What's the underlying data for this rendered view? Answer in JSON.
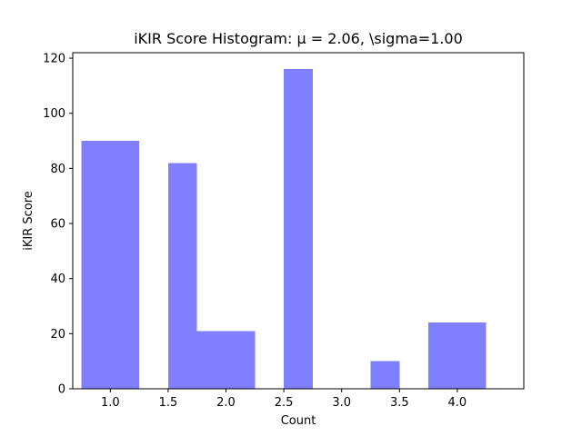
{
  "chart_data": {
    "type": "bar",
    "title": "iKIR Score Histogram: μ = 2.06, \\sigma=1.00",
    "xlabel": "Count",
    "ylabel": "iKIR Score",
    "xlim": [
      0.675,
      4.575
    ],
    "ylim": [
      0,
      122
    ],
    "xticks": [
      1.0,
      1.5,
      2.0,
      2.5,
      3.0,
      3.5,
      4.0
    ],
    "xtick_labels": [
      "1.0",
      "1.5",
      "2.0",
      "2.5",
      "3.0",
      "3.5",
      "4.0"
    ],
    "yticks": [
      0,
      20,
      40,
      60,
      80,
      100,
      120
    ],
    "ytick_labels": [
      "0",
      "20",
      "40",
      "60",
      "80",
      "100",
      "120"
    ],
    "bin_edges": [
      0.75,
      1.0,
      1.25,
      1.5,
      1.75,
      2.0,
      2.25,
      2.5,
      2.75,
      3.0,
      3.25,
      3.5,
      3.75,
      4.0,
      4.25
    ],
    "bins": [
      {
        "x0": 0.75,
        "x1": 1.0,
        "value": 90
      },
      {
        "x0": 1.0,
        "x1": 1.25,
        "value": 90
      },
      {
        "x0": 1.25,
        "x1": 1.5,
        "value": 0
      },
      {
        "x0": 1.5,
        "x1": 1.75,
        "value": 82
      },
      {
        "x0": 1.75,
        "x1": 2.0,
        "value": 21
      },
      {
        "x0": 2.0,
        "x1": 2.25,
        "value": 21
      },
      {
        "x0": 2.25,
        "x1": 2.5,
        "value": 0
      },
      {
        "x0": 2.5,
        "x1": 2.75,
        "value": 116
      },
      {
        "x0": 2.75,
        "x1": 3.0,
        "value": 0
      },
      {
        "x0": 3.0,
        "x1": 3.25,
        "value": 0
      },
      {
        "x0": 3.25,
        "x1": 3.5,
        "value": 10
      },
      {
        "x0": 3.5,
        "x1": 3.75,
        "value": 0
      },
      {
        "x0": 3.75,
        "x1": 4.0,
        "value": 24
      },
      {
        "x0": 4.0,
        "x1": 4.25,
        "value": 24
      }
    ],
    "bar_color": "#8080ff",
    "grid": false
  }
}
